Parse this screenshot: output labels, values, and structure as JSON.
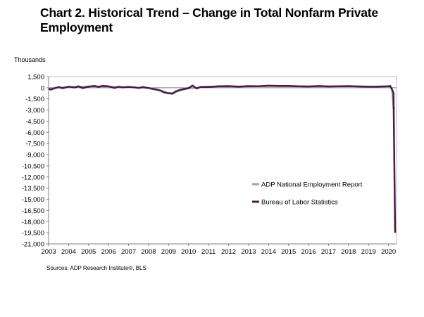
{
  "chart_data": {
    "type": "line",
    "title": "Chart 2. Historical Trend – Change in Total Nonfarm Private Employment",
    "ylabel": "Thousands",
    "xlabel": "",
    "ylim": [
      -21000,
      1500
    ],
    "yticks": [
      1500,
      0,
      -1500,
      -3000,
      -4500,
      -6000,
      -7500,
      -9000,
      -10500,
      -12000,
      -13500,
      -15000,
      -16500,
      -18000,
      -19500,
      -21000
    ],
    "xlim": [
      2003,
      2020.4
    ],
    "xticks": [
      2003,
      2004,
      2005,
      2006,
      2007,
      2008,
      2009,
      2010,
      2011,
      2012,
      2013,
      2014,
      2015,
      2016,
      2017,
      2018,
      2019,
      2020
    ],
    "grid": false,
    "legend_position": "lower-right",
    "source": "Sources: ADP Research Institute®, BLS",
    "series": [
      {
        "name": "ADP National Employment Report",
        "color": "#a6a6a6",
        "x": [
          2003.0,
          2004.0,
          2005.0,
          2006.0,
          2007.0,
          2008.0,
          2008.5,
          2009.0,
          2009.25,
          2009.5,
          2010.0,
          2011.0,
          2012.0,
          2013.0,
          2014.0,
          2015.0,
          2016.0,
          2017.0,
          2018.0,
          2019.0,
          2020.0,
          2020.17,
          2020.25,
          2020.33
        ],
        "y": [
          -60,
          90,
          180,
          140,
          70,
          -40,
          -280,
          -700,
          -720,
          -400,
          -90,
          160,
          150,
          180,
          230,
          200,
          160,
          180,
          200,
          150,
          190,
          -150,
          -2800,
          -2760
        ]
      },
      {
        "name": "Bureau of Labor Statistics",
        "color": "#4b1a46",
        "x": [
          2003.0,
          2003.1,
          2003.3,
          2003.5,
          2003.7,
          2004.0,
          2004.3,
          2004.5,
          2004.7,
          2005.0,
          2005.3,
          2005.5,
          2005.7,
          2006.0,
          2006.3,
          2006.5,
          2006.7,
          2007.0,
          2007.3,
          2007.5,
          2007.7,
          2008.0,
          2008.2,
          2008.4,
          2008.6,
          2008.8,
          2009.0,
          2009.2,
          2009.35,
          2009.5,
          2009.7,
          2010.0,
          2010.2,
          2010.4,
          2010.6,
          2010.8,
          2011.0,
          2011.5,
          2012.0,
          2012.5,
          2013.0,
          2013.5,
          2014.0,
          2014.5,
          2015.0,
          2015.5,
          2016.0,
          2016.5,
          2017.0,
          2017.5,
          2018.0,
          2018.5,
          2019.0,
          2019.5,
          2020.0,
          2020.08,
          2020.17,
          2020.25,
          2020.33
        ],
        "y": [
          -100,
          -250,
          -80,
          100,
          -60,
          150,
          30,
          200,
          -50,
          150,
          250,
          120,
          260,
          200,
          -30,
          150,
          40,
          120,
          60,
          -40,
          100,
          -30,
          -150,
          -250,
          -400,
          -650,
          -750,
          -800,
          -500,
          -350,
          -200,
          -50,
          300,
          -100,
          100,
          120,
          100,
          200,
          220,
          150,
          220,
          200,
          280,
          240,
          250,
          200,
          180,
          230,
          180,
          200,
          220,
          180,
          160,
          150,
          200,
          250,
          -200,
          -700,
          -19500
        ]
      }
    ]
  }
}
